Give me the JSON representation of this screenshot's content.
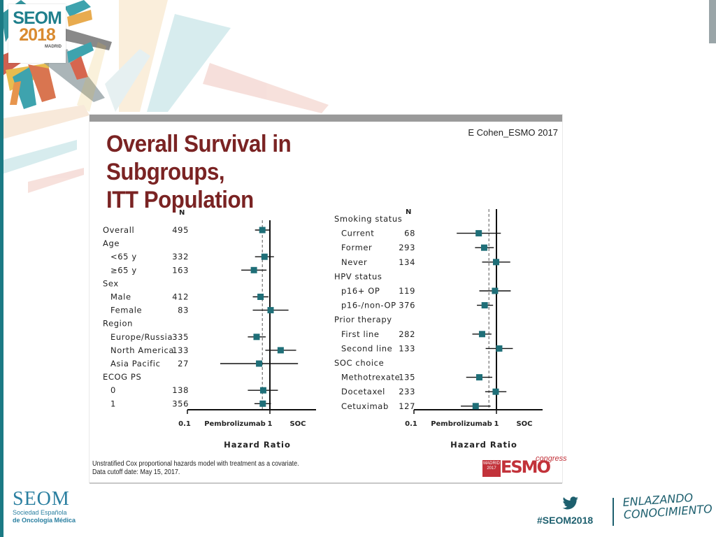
{
  "brand": {
    "logo_line1": "SEOM",
    "logo_line2": "2018",
    "logo_city": "MADRID",
    "org_name": "SEOM",
    "org_full_1": "Sociedad Española",
    "org_full_2": "de Oncología Médica",
    "hashtag": "#SEOM2018",
    "slogan_1": "ENLAZANDO",
    "slogan_2": "CONOCIMIENTO",
    "accent": "#1b7a84"
  },
  "slide": {
    "title_line1": "Overall Survival in Subgroups,",
    "title_line2": "ITT Population",
    "credit": "E Cohen_ESMO 2017",
    "footnote_1": "Unstratified Cox proportional hazards model with treatment as a covariate.",
    "footnote_2": "Data cutoff date: May 15, 2017.",
    "esmo_madrid": "MADRID 2017",
    "esmo_word": "ESMO",
    "esmo_congress": "congress"
  },
  "chart_data": {
    "type": "forest",
    "marker_color": "#1f6f78",
    "xlabel": "Hazard Ratio",
    "x_tick_left": "0.1",
    "x_tick_mid": "1",
    "left_arm": "Pembrolizumab",
    "right_arm": "SOC",
    "n_header": "N",
    "panels": [
      {
        "rows": [
          {
            "label": "Overall",
            "n": "495",
            "indent": 0,
            "hr": 0.81,
            "lo": 0.66,
            "hi": 0.99
          },
          {
            "label": "Age",
            "n": "",
            "indent": 0,
            "header": true
          },
          {
            "label": "<65 y",
            "n": "332",
            "indent": 1,
            "hr": 0.86,
            "lo": 0.66,
            "hi": 1.12
          },
          {
            "label": "≥65 y",
            "n": "163",
            "indent": 1,
            "hr": 0.64,
            "lo": 0.45,
            "hi": 0.91
          },
          {
            "label": "Sex",
            "n": "",
            "indent": 0,
            "header": true
          },
          {
            "label": "Male",
            "n": "412",
            "indent": 1,
            "hr": 0.77,
            "lo": 0.62,
            "hi": 0.96
          },
          {
            "label": "Female",
            "n": "83",
            "indent": 1,
            "hr": 1.02,
            "lo": 0.62,
            "hi": 1.68
          },
          {
            "label": "Region",
            "n": "",
            "indent": 0,
            "header": true
          },
          {
            "label": "Europe/Russia",
            "n": "335",
            "indent": 1,
            "hr": 0.69,
            "lo": 0.54,
            "hi": 0.89
          },
          {
            "label": "North America",
            "n": "133",
            "indent": 1,
            "hr": 1.35,
            "lo": 0.88,
            "hi": 2.08
          },
          {
            "label": "Asia Pacific",
            "n": "27",
            "indent": 1,
            "hr": 0.74,
            "lo": 0.25,
            "hi": 2.19
          },
          {
            "label": "ECOG PS",
            "n": "",
            "indent": 0,
            "header": true
          },
          {
            "label": "0",
            "n": "138",
            "indent": 1,
            "hr": 0.83,
            "lo": 0.54,
            "hi": 1.25
          },
          {
            "label": "1",
            "n": "356",
            "indent": 1,
            "hr": 0.82,
            "lo": 0.65,
            "hi": 1.03
          }
        ]
      },
      {
        "rows": [
          {
            "label": "Smoking status",
            "n": "",
            "indent": 0,
            "header": true
          },
          {
            "label": "Current",
            "n": "68",
            "indent": 1,
            "hr": 0.61,
            "lo": 0.33,
            "hi": 1.13
          },
          {
            "label": "Former",
            "n": "293",
            "indent": 1,
            "hr": 0.71,
            "lo": 0.55,
            "hi": 0.93
          },
          {
            "label": "Never",
            "n": "134",
            "indent": 1,
            "hr": 0.99,
            "lo": 0.67,
            "hi": 1.47
          },
          {
            "label": "HPV status",
            "n": "",
            "indent": 0,
            "header": true
          },
          {
            "label": "p16+ OP",
            "n": "119",
            "indent": 1,
            "hr": 0.96,
            "lo": 0.62,
            "hi": 1.49
          },
          {
            "label": "p16-/non-OP",
            "n": "376",
            "indent": 1,
            "hr": 0.72,
            "lo": 0.58,
            "hi": 0.91
          },
          {
            "label": "Prior therapy",
            "n": "",
            "indent": 0,
            "header": true
          },
          {
            "label": "First line",
            "n": "282",
            "indent": 1,
            "hr": 0.67,
            "lo": 0.51,
            "hi": 0.87
          },
          {
            "label": "Second line",
            "n": "133",
            "indent": 1,
            "hr": 1.08,
            "lo": 0.74,
            "hi": 1.58
          },
          {
            "label": "SOC choice",
            "n": "",
            "indent": 0,
            "header": true
          },
          {
            "label": "Methotrexate",
            "n": "135",
            "indent": 1,
            "hr": 0.62,
            "lo": 0.43,
            "hi": 0.89
          },
          {
            "label": "Docetaxel",
            "n": "233",
            "indent": 1,
            "hr": 0.98,
            "lo": 0.73,
            "hi": 1.32
          },
          {
            "label": "Cetuximab",
            "n": "127",
            "indent": 1,
            "hr": 0.56,
            "lo": 0.37,
            "hi": 0.85
          }
        ]
      }
    ]
  }
}
